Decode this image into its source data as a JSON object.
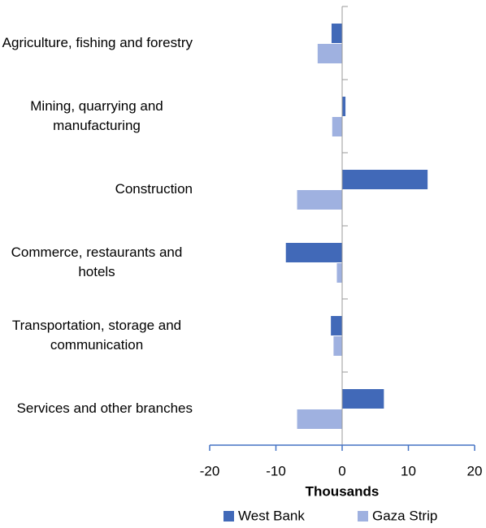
{
  "chart_data": {
    "type": "barh",
    "categories": [
      "Agriculture, fishing and forestry",
      "Mining, quarrying and manufacturing",
      "Construction",
      "Commerce, restaurants and hotels",
      "Transportation, storage and communication",
      "Services and other branches"
    ],
    "series": [
      {
        "name": "West Bank",
        "color": "#4169b8",
        "values": [
          -1.6,
          0.5,
          12.9,
          -8.5,
          -1.7,
          6.3
        ]
      },
      {
        "name": "Gaza Strip",
        "color": "#9fb1e0",
        "values": [
          -3.7,
          -1.5,
          -6.8,
          -0.8,
          -1.3,
          -6.8
        ]
      }
    ],
    "xlabel": "Thousands",
    "xlim": [
      -20,
      20
    ],
    "xticks": [
      -20,
      -10,
      0,
      10,
      20
    ],
    "legend": "bottom"
  }
}
